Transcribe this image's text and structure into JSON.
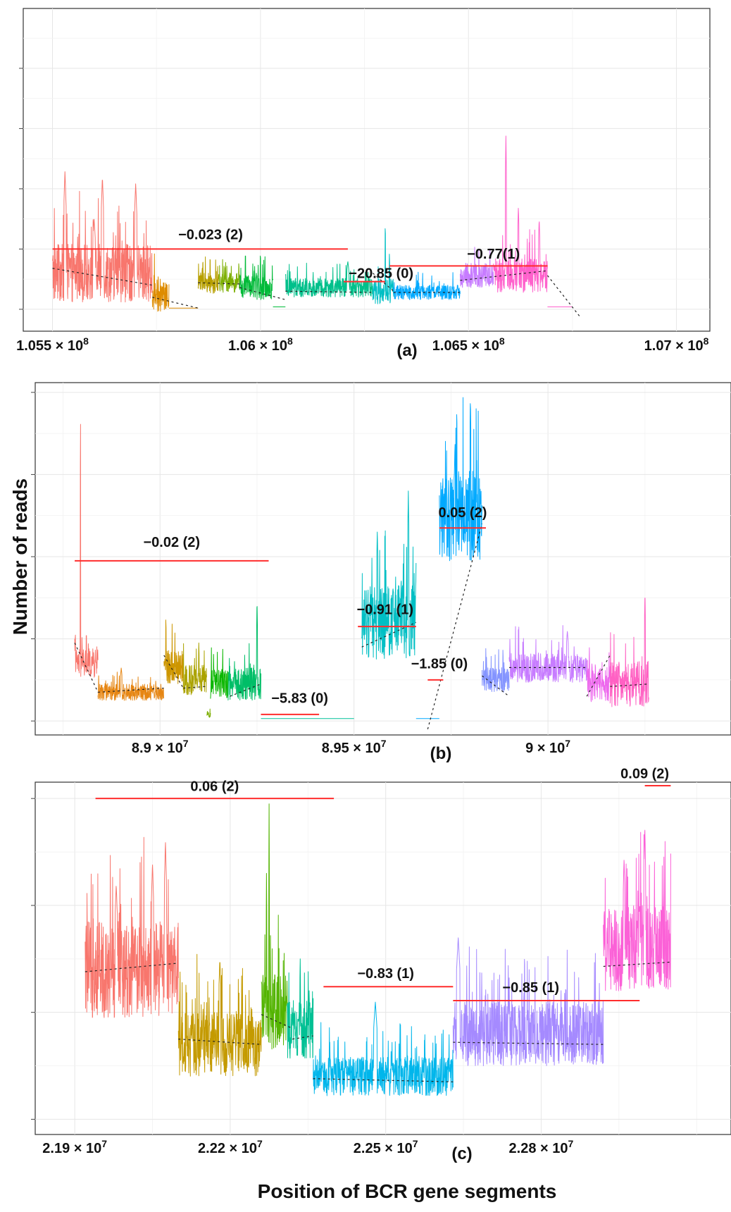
{
  "figure": {
    "ylabel": "Number of reads",
    "xlabel": "Position of BCR gene segments"
  },
  "chart_data": [
    {
      "type": "line",
      "panel_tag": "(a)",
      "xlabel": "",
      "ylabel": "",
      "xlim": [
        105450000,
        107060000
      ],
      "ylim": [
        -10,
        245
      ],
      "x_ticks": [
        105500000,
        106000000,
        106500000,
        107000000
      ],
      "x_tick_labels": [
        {
          "m": "1.055 × 10",
          "e": "8"
        },
        {
          "m": "1.06 × 10",
          "e": "8"
        },
        {
          "m": "1.065 × 10",
          "e": "8"
        },
        {
          "m": "1.07 × 10",
          "e": "8"
        }
      ],
      "y_ticks": [
        0,
        50,
        100,
        150,
        200
      ],
      "grid": true,
      "legend": "none",
      "series": [
        {
          "color": "#f8766d",
          "x": [
            105500000,
            105740000
          ],
          "level": 30,
          "noise": 24,
          "spikes": [
            [
              105530000,
              115
            ],
            [
              105600000,
              75
            ],
            [
              105620000,
              110
            ],
            [
              105700000,
              105
            ]
          ]
        },
        {
          "color": "#de8c00",
          "x": [
            105740000,
            105780000
          ],
          "level": 10,
          "noise": 12,
          "spikes": [
            [
              105745000,
              48
            ]
          ]
        },
        {
          "color": "#de8c00",
          "x": [
            105780000,
            105850000
          ],
          "level": 1,
          "noise": 0,
          "spikes": []
        },
        {
          "color": "#b79f00",
          "x": [
            105850000,
            105900000
          ],
          "level": 22,
          "noise": 9,
          "spikes": [
            [
              105860000,
              35
            ]
          ]
        },
        {
          "color": "#7cae00",
          "x": [
            105900000,
            105950000
          ],
          "level": 22,
          "noise": 8,
          "spikes": []
        },
        {
          "color": "#00ba38",
          "x": [
            105950000,
            106030000
          ],
          "level": 18,
          "noise": 10,
          "spikes": [
            [
              105990000,
              30
            ]
          ]
        },
        {
          "color": "#00ba38",
          "x": [
            106030000,
            106060000
          ],
          "level": 2,
          "noise": 0,
          "spikes": []
        },
        {
          "color": "#00c08b",
          "x": [
            106060000,
            106270000
          ],
          "level": 18,
          "noise": 8,
          "spikes": [
            [
              106210000,
              40
            ]
          ]
        },
        {
          "color": "#00bfc4",
          "x": [
            106270000,
            106320000
          ],
          "level": 15,
          "noise": 11,
          "spikes": [
            [
              106300000,
              75
            ],
            [
              106310000,
              48
            ]
          ]
        },
        {
          "color": "#00a9ff",
          "x": [
            106320000,
            106480000
          ],
          "level": 14,
          "noise": 6,
          "spikes": []
        },
        {
          "color": "#c77cff",
          "x": [
            106480000,
            106560000
          ],
          "level": 28,
          "noise": 10,
          "spikes": []
        },
        {
          "color": "#ff61cc",
          "x": [
            106560000,
            106690000
          ],
          "level": 28,
          "noise": 14,
          "spikes": [
            [
              106590000,
              145
            ],
            [
              106620000,
              85
            ],
            [
              106670000,
              75
            ]
          ]
        },
        {
          "color": "#ff61cc",
          "x": [
            106690000,
            106750000
          ],
          "level": 2,
          "noise": 0,
          "spikes": []
        }
      ],
      "trend_lines": [
        {
          "x": [
            105500000,
            105740000
          ],
          "y": [
            34,
            20
          ]
        },
        {
          "x": [
            105740000,
            105850000
          ],
          "y": [
            10,
            1
          ]
        },
        {
          "x": [
            105850000,
            105950000
          ],
          "y": [
            22,
            21
          ]
        },
        {
          "x": [
            105950000,
            106060000
          ],
          "y": [
            18,
            8
          ]
        },
        {
          "x": [
            106060000,
            106270000
          ],
          "y": [
            15,
            14
          ]
        },
        {
          "x": [
            106270000,
            106320000
          ],
          "y": [
            30,
            15
          ]
        },
        {
          "x": [
            106320000,
            106480000
          ],
          "y": [
            14,
            14
          ]
        },
        {
          "x": [
            106480000,
            106690000
          ],
          "y": [
            24,
            32
          ]
        },
        {
          "x": [
            106690000,
            106770000
          ],
          "y": [
            28,
            -7
          ]
        }
      ],
      "annotations": [
        {
          "label": "−0.023 (2)",
          "segment_x": [
            105500000,
            106210000
          ],
          "y": 50,
          "label_x": 105880000,
          "label_y": 58
        },
        {
          "label": "−20.85 (0)",
          "segment_x": [
            106200000,
            106300000
          ],
          "y": 23,
          "label_x": 106290000,
          "label_y": 26
        },
        {
          "label": "−0.77(1)",
          "segment_x": [
            106310000,
            106690000
          ],
          "y": 36,
          "label_x": 106560000,
          "label_y": 42
        }
      ]
    },
    {
      "type": "line",
      "panel_tag": "(b)",
      "xlabel": "",
      "ylabel": "",
      "xlim": [
        88700000,
        90450000
      ],
      "ylim": [
        -5,
        405
      ],
      "x_ticks": [
        89000000,
        89500000,
        90000000
      ],
      "x_tick_labels": [
        {
          "m": "8.9 × 10",
          "e": "7"
        },
        {
          "m": "8.95 × 10",
          "e": "7"
        },
        {
          "m": "9 × 10",
          "e": "7"
        }
      ],
      "y_ticks": [
        0,
        100,
        200,
        300,
        400
      ],
      "grid": true,
      "legend": "none",
      "series": [
        {
          "color": "#f8766d",
          "x": [
            88780000,
            88840000
          ],
          "level": 70,
          "noise": 18,
          "spikes": [
            [
              88795000,
              385
            ],
            [
              88810000,
              110
            ]
          ]
        },
        {
          "color": "#e68613",
          "x": [
            88840000,
            89010000
          ],
          "level": 35,
          "noise": 10,
          "spikes": [
            [
              88900000,
              65
            ]
          ]
        },
        {
          "color": "#cd9600",
          "x": [
            89010000,
            89060000
          ],
          "level": 65,
          "noise": 22,
          "spikes": [
            [
              89015000,
              130
            ]
          ]
        },
        {
          "color": "#aba300",
          "x": [
            89060000,
            89120000
          ],
          "level": 50,
          "noise": 18,
          "spikes": [
            [
              89100000,
              95
            ]
          ]
        },
        {
          "color": "#7cae00",
          "x": [
            89120000,
            89130000
          ],
          "level": 8,
          "noise": 4,
          "spikes": []
        },
        {
          "color": "#0cb702",
          "x": [
            89130000,
            89175000
          ],
          "level": 45,
          "noise": 18,
          "spikes": []
        },
        {
          "color": "#00be67",
          "x": [
            89175000,
            89260000
          ],
          "level": 45,
          "noise": 20,
          "spikes": [
            [
              89250000,
              150
            ]
          ]
        },
        {
          "color": "#00c19a",
          "x": [
            89260000,
            89500000
          ],
          "level": 3,
          "noise": 0,
          "spikes": []
        },
        {
          "color": "#00bfc4",
          "x": [
            89520000,
            89660000
          ],
          "level": 120,
          "noise": 45,
          "spikes": [
            [
              89640000,
              280
            ],
            [
              89560000,
              230
            ]
          ]
        },
        {
          "color": "#00a9ff",
          "x": [
            89660000,
            89720000
          ],
          "level": 3,
          "noise": 0,
          "spikes": []
        },
        {
          "color": "#00a9ff",
          "x": [
            89720000,
            89830000
          ],
          "level": 250,
          "noise": 55,
          "spikes": [
            [
              89800000,
              395
            ],
            [
              89760000,
              330
            ]
          ]
        },
        {
          "color": "#8494ff",
          "x": [
            89830000,
            89900000
          ],
          "level": 50,
          "noise": 15,
          "spikes": []
        },
        {
          "color": "#c77cff",
          "x": [
            89900000,
            90100000
          ],
          "level": 65,
          "noise": 18,
          "spikes": [
            [
              90050000,
              110
            ]
          ]
        },
        {
          "color": "#ed68ed",
          "x": [
            90100000,
            90160000
          ],
          "level": 45,
          "noise": 22,
          "spikes": []
        },
        {
          "color": "#ff61c3",
          "x": [
            90160000,
            90260000
          ],
          "level": 45,
          "noise": 28,
          "spikes": [
            [
              90250000,
              160
            ]
          ]
        }
      ],
      "trend_lines": [
        {
          "x": [
            88780000,
            88840000
          ],
          "y": [
            95,
            35
          ]
        },
        {
          "x": [
            88840000,
            89010000
          ],
          "y": [
            35,
            40
          ]
        },
        {
          "x": [
            89010000,
            89060000
          ],
          "y": [
            80,
            40
          ]
        },
        {
          "x": [
            89060000,
            89120000
          ],
          "y": [
            40,
            42
          ]
        },
        {
          "x": [
            89180000,
            89260000
          ],
          "y": [
            30,
            45
          ]
        },
        {
          "x": [
            89520000,
            89660000
          ],
          "y": [
            90,
            120
          ]
        },
        {
          "x": [
            89690000,
            89830000
          ],
          "y": [
            -10,
            240
          ]
        },
        {
          "x": [
            89830000,
            89900000
          ],
          "y": [
            55,
            30
          ]
        },
        {
          "x": [
            89900000,
            90100000
          ],
          "y": [
            65,
            65
          ]
        },
        {
          "x": [
            90100000,
            90160000
          ],
          "y": [
            30,
            80
          ]
        },
        {
          "x": [
            90160000,
            90260000
          ],
          "y": [
            42,
            45
          ]
        }
      ],
      "annotations": [
        {
          "label": "−0.02 (2)",
          "segment_x": [
            88780000,
            89280000
          ],
          "y": 195,
          "label_x": 89030000,
          "label_y": 212
        },
        {
          "label": "−5.83 (0)",
          "segment_x": [
            89260000,
            89410000
          ],
          "y": 8,
          "label_x": 89360000,
          "label_y": 22
        },
        {
          "label": "−0.91 (1)",
          "segment_x": [
            89510000,
            89660000
          ],
          "y": 115,
          "label_x": 89580000,
          "label_y": 130
        },
        {
          "label": "−1.85 (0)",
          "segment_x": [
            89690000,
            89730000
          ],
          "y": 50,
          "label_x": 89720000,
          "label_y": 64
        },
        {
          "label": "0.05 (2)",
          "segment_x": [
            89720000,
            89840000
          ],
          "y": 235,
          "label_x": 89780000,
          "label_y": 248
        }
      ]
    },
    {
      "type": "line",
      "panel_tag": "(c)",
      "xlabel": "",
      "ylabel": "",
      "xlim": [
        21840000,
        23150000
      ],
      "ylim": [
        -5,
        310
      ],
      "x_ticks": [
        21900000,
        22200000,
        22500000,
        22800000
      ],
      "x_tick_labels": [
        {
          "m": "2.19 × 10",
          "e": "7"
        },
        {
          "m": "2.22 × 10",
          "e": "7"
        },
        {
          "m": "2.25 × 10",
          "e": "7"
        },
        {
          "m": "2.28 × 10",
          "e": "7"
        }
      ],
      "y_ticks": [
        0,
        100,
        200,
        300
      ],
      "grid": true,
      "legend": "none",
      "series": [
        {
          "color": "#f8766d",
          "x": [
            21920000,
            22100000
          ],
          "level": 140,
          "noise": 45,
          "spikes": [
            [
              22075000,
              260
            ],
            [
              22050000,
              240
            ],
            [
              21980000,
              220
            ]
          ]
        },
        {
          "color": "#c49a00",
          "x": [
            22100000,
            22260000
          ],
          "level": 70,
          "noise": 30,
          "spikes": [
            [
              22180000,
              150
            ]
          ]
        },
        {
          "color": "#53b400",
          "x": [
            22260000,
            22310000
          ],
          "level": 100,
          "noise": 35,
          "spikes": [
            [
              22275000,
              295
            ],
            [
              22270000,
              230
            ]
          ]
        },
        {
          "color": "#00c094",
          "x": [
            22310000,
            22360000
          ],
          "level": 85,
          "noise": 28,
          "spikes": [
            [
              22335000,
              150
            ]
          ]
        },
        {
          "color": "#00b6eb",
          "x": [
            22360000,
            22630000
          ],
          "level": 40,
          "noise": 18,
          "spikes": [
            [
              22480000,
              110
            ]
          ]
        },
        {
          "color": "#a58aff",
          "x": [
            22630000,
            22920000
          ],
          "level": 80,
          "noise": 30,
          "spikes": [
            [
              22640000,
              170
            ]
          ]
        },
        {
          "color": "#fb61d7",
          "x": [
            22920000,
            23050000
          ],
          "level": 160,
          "noise": 40,
          "spikes": [
            [
              23000000,
              275
            ],
            [
              22960000,
              245
            ]
          ]
        }
      ],
      "trend_lines": [
        {
          "x": [
            21920000,
            22100000
          ],
          "y": [
            138,
            146
          ]
        },
        {
          "x": [
            22100000,
            22260000
          ],
          "y": [
            75,
            70
          ]
        },
        {
          "x": [
            22260000,
            22320000
          ],
          "y": [
            98,
            85
          ]
        },
        {
          "x": [
            22320000,
            22360000
          ],
          "y": [
            75,
            78
          ]
        },
        {
          "x": [
            22360000,
            22630000
          ],
          "y": [
            38,
            35
          ]
        },
        {
          "x": [
            22630000,
            22920000
          ],
          "y": [
            72,
            70
          ]
        },
        {
          "x": [
            22920000,
            23050000
          ],
          "y": [
            143,
            147
          ]
        }
      ],
      "annotations": [
        {
          "label": "0.06 (2)",
          "segment_x": [
            21940000,
            22400000
          ],
          "y": 300,
          "label_x": 22170000,
          "label_y": 307
        },
        {
          "label": "−0.83 (1)",
          "segment_x": [
            22380000,
            22630000
          ],
          "y": 124,
          "label_x": 22500000,
          "label_y": 132
        },
        {
          "label": "−0.85 (1)",
          "segment_x": [
            22630000,
            22990000
          ],
          "y": 111,
          "label_x": 22780000,
          "label_y": 119
        },
        {
          "label": "0.09 (2)",
          "segment_x": [
            23000000,
            23050000
          ],
          "y": 312,
          "label_x": 23000000,
          "label_y": 319
        }
      ]
    }
  ]
}
